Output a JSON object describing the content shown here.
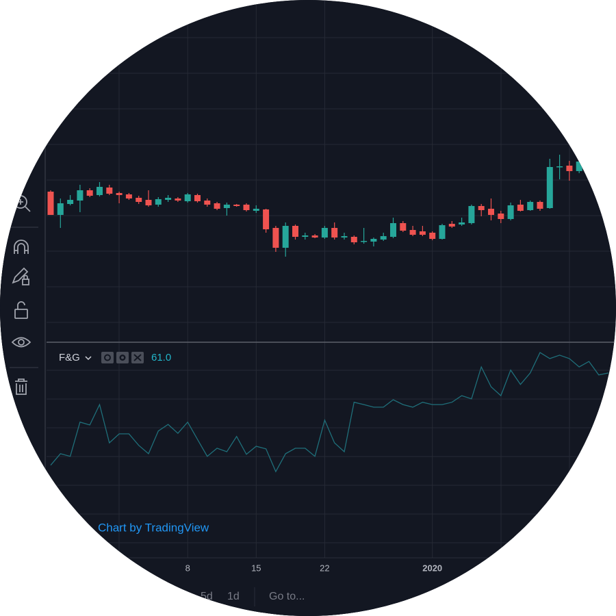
{
  "chart_data": [
    {
      "type": "candlestick",
      "categories": [
        null,
        null,
        null,
        null,
        null,
        null,
        null,
        null,
        null,
        null,
        null,
        null,
        null,
        null,
        "8",
        null,
        null,
        null,
        null,
        null,
        null,
        "15",
        null,
        null,
        null,
        null,
        null,
        null,
        "22",
        null,
        null,
        null,
        null,
        null,
        null,
        null,
        null,
        null,
        null,
        "2020",
        null,
        null,
        null,
        null,
        null,
        null,
        null,
        null,
        null,
        null,
        null,
        null,
        null,
        null,
        null
      ],
      "open": [
        220,
        186,
        202,
        207,
        222,
        215,
        226,
        218,
        216,
        211,
        208,
        201,
        208,
        210,
        206,
        215,
        207,
        203,
        196,
        201,
        201,
        192,
        194,
        167,
        138,
        170,
        154,
        156,
        153,
        167,
        153,
        154,
        147,
        147,
        150,
        154,
        174,
        164,
        162,
        160,
        151,
        173,
        172,
        174,
        199,
        195,
        188,
        180,
        201,
        193,
        205,
        196,
        256,
        258,
        250
      ],
      "high": [
        222,
        210,
        215,
        230,
        225,
        234,
        230,
        220,
        218,
        214,
        222,
        212,
        215,
        212,
        218,
        217,
        210,
        205,
        204,
        202,
        203,
        200,
        195,
        170,
        175,
        172,
        160,
        158,
        170,
        175,
        160,
        156,
        167,
        153,
        160,
        182,
        177,
        170,
        170,
        162,
        173,
        177,
        182,
        201,
        202,
        210,
        192,
        204,
        208,
        207,
        207,
        268,
        274,
        265,
        270
      ],
      "low": [
        186,
        167,
        200,
        190,
        212,
        213,
        215,
        203,
        208,
        202,
        198,
        198,
        205,
        205,
        204,
        204,
        198,
        193,
        185,
        198,
        191,
        189,
        160,
        132,
        125,
        150,
        150,
        152,
        151,
        150,
        150,
        143,
        144,
        140,
        148,
        152,
        161,
        155,
        155,
        149,
        150,
        167,
        170,
        172,
        184,
        178,
        174,
        178,
        191,
        192,
        192,
        195,
        238,
        236,
        247
      ],
      "close": [
        186,
        203,
        208,
        222,
        214,
        227,
        217,
        215,
        210,
        205,
        200,
        209,
        211,
        207,
        216,
        206,
        201,
        195,
        201,
        199,
        193,
        195,
        165,
        138,
        170,
        154,
        156,
        153,
        167,
        153,
        155,
        146,
        148,
        151,
        155,
        174,
        163,
        157,
        157,
        151,
        171,
        169,
        175,
        199,
        193,
        186,
        180,
        200,
        192,
        205,
        195,
        256,
        257,
        250,
        264
      ],
      "ylim": [
        0,
        500
      ],
      "up_color": "#26a69a",
      "down_color": "#ef5350",
      "grid": true
    },
    {
      "type": "line",
      "name": "F&G",
      "values": [
        28.9,
        32.9,
        32.0,
        43.9,
        42.9,
        50.0,
        36.7,
        39.8,
        39.8,
        35.8,
        32.9,
        40.8,
        43.1,
        40.0,
        43.9,
        37.9,
        32.0,
        34.8,
        33.6,
        38.9,
        32.7,
        35.5,
        34.6,
        26.7,
        32.9,
        34.8,
        34.8,
        32.0,
        44.6,
        36.7,
        33.6,
        50.8,
        50.0,
        49.1,
        49.1,
        51.7,
        50.0,
        49.1,
        50.8,
        50.0,
        50.0,
        50.8,
        53.1,
        52.0,
        63.1,
        56.2,
        53.1,
        62.0,
        57.0,
        61.0,
        68.1,
        66.0,
        67.2,
        66.0,
        63.1,
        65.0,
        60.3,
        61.0
      ],
      "last_value_label": "61.0",
      "color": "#1f6f7a",
      "ylim": [
        -4.5,
        70.5
      ],
      "grid": true
    }
  ],
  "ui": {
    "watermark": "Chart by TradingView",
    "timeframes": [
      "5d",
      "1d"
    ],
    "goto": "Go to..."
  }
}
